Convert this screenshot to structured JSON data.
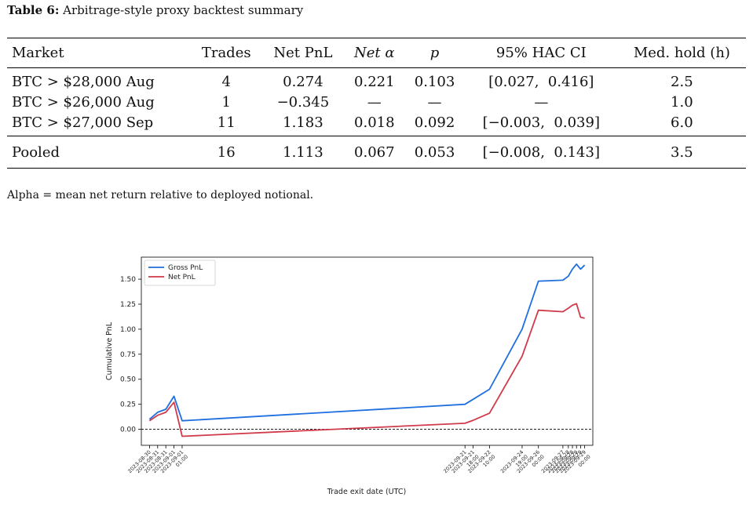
{
  "table": {
    "label": "Table 6:",
    "caption": "Arbitrage-style proxy backtest summary",
    "headers": [
      "Market",
      "Trades",
      "Net PnL",
      "Net α",
      "p",
      "95% HAC CI",
      "Med. hold (h)"
    ],
    "rows": [
      {
        "market": "BTC > $28,000 Aug",
        "trades": "4",
        "net_pnl": "0.274",
        "net_alpha": "0.221",
        "p": "0.103",
        "ci": "[0.027,  0.416]",
        "hold": "2.5"
      },
      {
        "market": "BTC > $26,000 Aug",
        "trades": "1",
        "net_pnl": "−0.345",
        "net_alpha": "—",
        "p": "—",
        "ci": "—",
        "hold": "1.0"
      },
      {
        "market": "BTC > $27,000 Sep",
        "trades": "11",
        "net_pnl": "1.183",
        "net_alpha": "0.018",
        "p": "0.092",
        "ci": "[−0.003,  0.039]",
        "hold": "6.0"
      }
    ],
    "pooled": {
      "market": "Pooled",
      "trades": "16",
      "net_pnl": "1.113",
      "net_alpha": "0.067",
      "p": "0.053",
      "ci": "[−0.008,  0.143]",
      "hold": "3.5"
    },
    "note": "Alpha = mean net return relative to deployed notional."
  },
  "chart_data": {
    "type": "line",
    "xlabel": "Trade exit date (UTC)",
    "ylabel": "Cumulative PnL",
    "ylim": [
      -0.16,
      1.72
    ],
    "yticks": [
      "0.00",
      "0.25",
      "0.50",
      "0.75",
      "1.00",
      "1.25",
      "1.50"
    ],
    "ytick_values": [
      0.0,
      0.25,
      0.5,
      0.75,
      1.0,
      1.25,
      1.5
    ],
    "xlim": [
      -0.3,
      16.3
    ],
    "x_positions": [
      0,
      0.3,
      0.6,
      0.9,
      1.2,
      11.6,
      11.9,
      12.5,
      13.7,
      14.3,
      15.2,
      15.4,
      15.55,
      15.7,
      15.85,
      16.0
    ],
    "x_tick_labels": [
      "2023-08-30",
      "2023-08-31",
      "2023-08-31",
      "2023-09-01",
      "2023-09-01 01:00",
      "2023-09-21",
      "2023-09-21 18:00",
      "2023-09-22 10:00",
      "2023-09-24 19:00",
      "2023-09-26 00:00",
      "2023-09-27",
      "2023-09-28",
      "2023-09-28",
      "2023-09-29",
      "2023-09-29",
      "2023-09-29 00:00"
    ],
    "baseline": 0.0,
    "legend_position": "top-left",
    "series": [
      {
        "name": "Gross PnL",
        "color": "#1f6fe0",
        "values": [
          0.1,
          0.17,
          0.2,
          0.33,
          0.085,
          0.25,
          0.3,
          0.4,
          1.0,
          1.48,
          1.49,
          1.53,
          1.6,
          1.65,
          1.6,
          1.64
        ]
      },
      {
        "name": "Net PnL",
        "color": "#d03a4a",
        "values": [
          0.085,
          0.14,
          0.17,
          0.27,
          -0.07,
          0.06,
          0.09,
          0.16,
          0.73,
          1.19,
          1.175,
          1.21,
          1.24,
          1.255,
          1.12,
          1.11
        ]
      }
    ]
  }
}
